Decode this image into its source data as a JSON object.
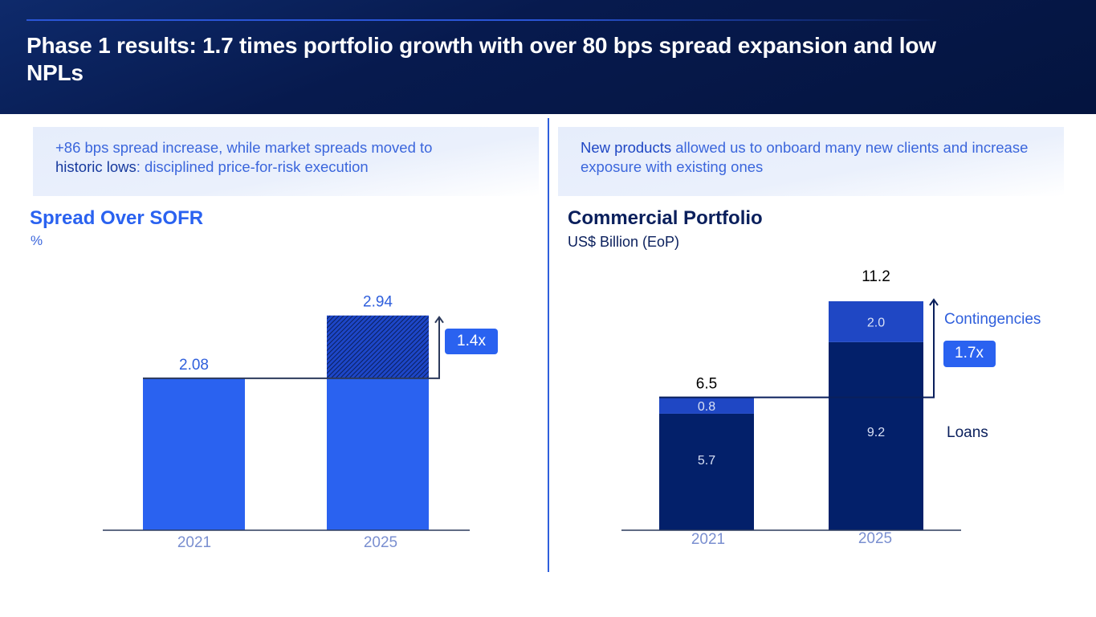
{
  "header": {
    "title": "Phase 1 results: 1.7 times portfolio growth with over 80 bps spread expansion and low NPLs"
  },
  "callouts": {
    "left": {
      "line1": "+86 bps spread increase, while market spreads moved to",
      "emphasis": "historic lows",
      "rest": ":  disciplined price-for-risk execution"
    },
    "right": {
      "emphasis": "New products",
      "rest": " allowed us to onboard many new clients and increase exposure with existing ones"
    }
  },
  "colors": {
    "header_bg": "#071a4e",
    "bright_blue": "#2a62f0",
    "navy": "#03206a",
    "mid_blue": "#1f47c4",
    "badge": "#2a62f0",
    "axis": "#2c3a5c"
  },
  "chart_data": [
    {
      "type": "bar",
      "title": "Spread Over SOFR",
      "subtitle": "%",
      "categories": [
        "2021",
        "2025"
      ],
      "values": [
        2.08,
        2.94
      ],
      "value_labels": [
        "2.08",
        "2.94"
      ],
      "increment": {
        "from": 2.08,
        "to": 2.94,
        "style": "hatched"
      },
      "growth_badge": "1.4x",
      "xlabel": "",
      "ylabel": "",
      "ylim": [
        0,
        3.3
      ],
      "grid": false
    },
    {
      "type": "bar",
      "stacked": true,
      "title": "Commercial Portfolio",
      "subtitle": "US$ Billion (EoP)",
      "categories": [
        "2021",
        "2025"
      ],
      "series": [
        {
          "name": "Loans",
          "values": [
            5.7,
            9.2
          ],
          "labels": [
            "5.7",
            "9.2"
          ]
        },
        {
          "name": "Contingencies",
          "values": [
            0.8,
            2.0
          ],
          "labels": [
            "0.8",
            "2.0"
          ]
        }
      ],
      "totals": [
        6.5,
        11.2
      ],
      "total_labels": [
        "6.5",
        "11.2"
      ],
      "growth_badge": "1.7x",
      "legend": [
        "Contingencies",
        "Loans"
      ],
      "legend_position": "right",
      "xlabel": "",
      "ylabel": "",
      "ylim": [
        0,
        13
      ],
      "grid": false
    }
  ]
}
